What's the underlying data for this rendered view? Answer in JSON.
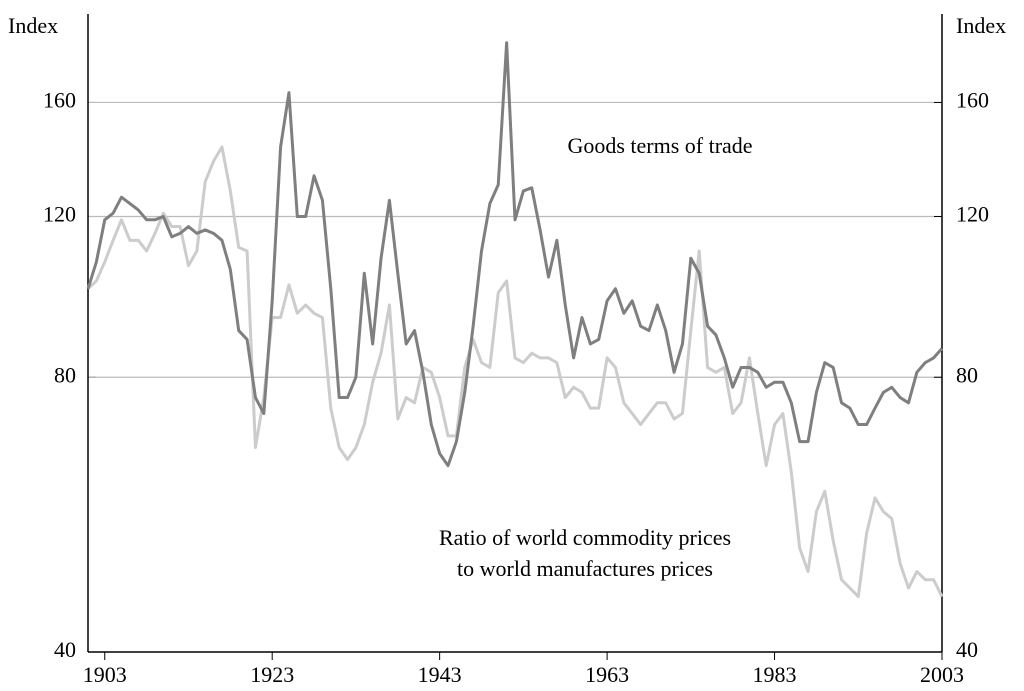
{
  "chart_data": {
    "type": "line",
    "y_label": "Index",
    "y2_label": "Index",
    "log_scale": true,
    "grid": true,
    "annotations": [
      "Goods terms of trade",
      "Ratio of world commodity prices",
      "to world manufactures prices"
    ],
    "x": [
      1901,
      1902,
      1903,
      1904,
      1905,
      1906,
      1907,
      1908,
      1909,
      1910,
      1911,
      1912,
      1913,
      1914,
      1915,
      1916,
      1917,
      1918,
      1919,
      1920,
      1921,
      1922,
      1923,
      1924,
      1925,
      1926,
      1927,
      1928,
      1929,
      1930,
      1931,
      1932,
      1933,
      1934,
      1935,
      1936,
      1937,
      1938,
      1939,
      1940,
      1941,
      1942,
      1943,
      1944,
      1945,
      1946,
      1947,
      1948,
      1949,
      1950,
      1951,
      1952,
      1953,
      1954,
      1955,
      1956,
      1957,
      1958,
      1959,
      1960,
      1961,
      1962,
      1963,
      1964,
      1965,
      1966,
      1967,
      1968,
      1969,
      1970,
      1971,
      1972,
      1973,
      1974,
      1975,
      1976,
      1977,
      1978,
      1979,
      1980,
      1981,
      1982,
      1983,
      1984,
      1985,
      1986,
      1987,
      1988,
      1989,
      1990,
      1991,
      1992,
      1993,
      1994,
      1995,
      1996,
      1997,
      1998,
      1999,
      2000,
      2001,
      2002,
      2003
    ],
    "xlim": [
      1901,
      2003
    ],
    "xticks": [
      1903,
      1923,
      1943,
      1963,
      1983,
      2003
    ],
    "ylim": [
      40,
      200
    ],
    "yticks": [
      40,
      80,
      120,
      160
    ],
    "y2lim": [
      40,
      200
    ],
    "y2ticks": [
      40,
      80,
      120,
      160
    ],
    "series": [
      {
        "name": "Goods terms of trade",
        "color": "#7f7f7f",
        "values": [
          100,
          107,
          119,
          121,
          126,
          124,
          122,
          119,
          119,
          120,
          114,
          115,
          117,
          115,
          116,
          115,
          113,
          105,
          90,
          88,
          76,
          73,
          97,
          143,
          164,
          120,
          120,
          133,
          125,
          100,
          76,
          76,
          80,
          104,
          87,
          108,
          125,
          104,
          87,
          90,
          81,
          71,
          66,
          64,
          68,
          77,
          91,
          110,
          124,
          130,
          186,
          119,
          128,
          129,
          116,
          103,
          113,
          96,
          84,
          93,
          87,
          88,
          97,
          100,
          94,
          97,
          91,
          90,
          96,
          90,
          81,
          87,
          108,
          104,
          91,
          89,
          84,
          78,
          82,
          82,
          81,
          78,
          79,
          79,
          75,
          68,
          68,
          77,
          83,
          82,
          75,
          74,
          71,
          71,
          74,
          77,
          78,
          76,
          75,
          81,
          83,
          84,
          86
        ]
      },
      {
        "name": "Ratio of world commodity prices to world manufactures prices",
        "color": "#cccccc",
        "values": [
          100,
          102,
          107,
          113,
          119,
          113,
          113,
          110,
          115,
          121,
          117,
          117,
          106,
          110,
          131,
          138,
          143,
          128,
          111,
          110,
          67,
          76,
          93,
          93,
          101,
          94,
          96,
          94,
          93,
          74,
          67,
          65,
          67,
          71,
          79,
          85,
          96,
          72,
          76,
          75,
          82,
          81,
          76,
          69,
          69,
          82,
          88,
          83,
          82,
          99,
          102,
          84,
          83,
          85,
          84,
          84,
          83,
          76,
          78,
          77,
          74,
          74,
          84,
          82,
          75,
          73,
          71,
          73,
          75,
          75,
          72,
          73,
          90,
          110,
          82,
          81,
          82,
          73,
          75,
          84,
          73,
          64,
          71,
          73,
          63,
          52,
          49,
          57,
          60,
          53,
          48,
          47,
          46,
          54,
          59,
          57,
          56,
          50,
          47,
          49,
          48,
          48,
          46
        ]
      }
    ]
  }
}
